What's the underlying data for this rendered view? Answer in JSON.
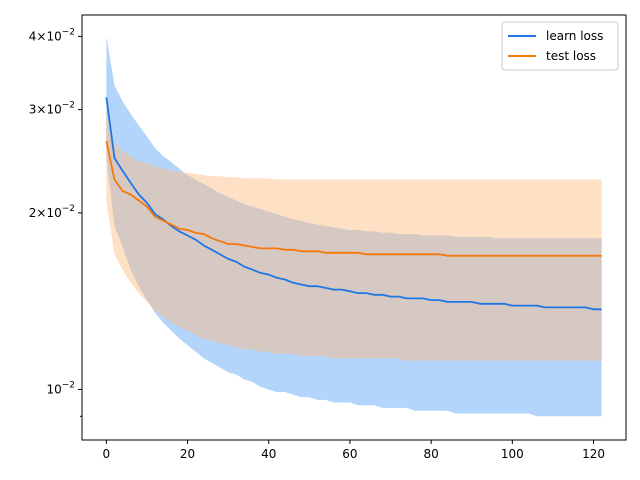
{
  "chart_data": {
    "type": "line",
    "title": "",
    "xlabel": "",
    "ylabel": "",
    "yscale": "log",
    "xlim": [
      -6,
      128
    ],
    "ylim": [
      0.0082,
      0.0435
    ],
    "grid": false,
    "legend_position": "top-right",
    "x_ticks": [
      {
        "value": 0,
        "label": "0"
      },
      {
        "value": 20,
        "label": "20"
      },
      {
        "value": 40,
        "label": "40"
      },
      {
        "value": 60,
        "label": "60"
      },
      {
        "value": 80,
        "label": "80"
      },
      {
        "value": 100,
        "label": "100"
      },
      {
        "value": 120,
        "label": "120"
      }
    ],
    "y_ticks": [
      {
        "value": 0.04,
        "base": "4×10",
        "exp": "−2"
      },
      {
        "value": 0.03,
        "base": "3×10",
        "exp": "−2"
      },
      {
        "value": 0.02,
        "base": "2×10",
        "exp": "−2"
      },
      {
        "value": 0.01,
        "base": "10",
        "exp": "−2"
      }
    ],
    "y_minor_ticks": [
      0.009
    ],
    "x": [
      0,
      2,
      4,
      6,
      8,
      10,
      12,
      14,
      16,
      18,
      20,
      22,
      24,
      26,
      28,
      30,
      32,
      34,
      36,
      38,
      40,
      42,
      44,
      46,
      48,
      50,
      52,
      54,
      56,
      58,
      60,
      62,
      64,
      66,
      68,
      70,
      72,
      74,
      76,
      78,
      80,
      82,
      84,
      86,
      88,
      90,
      92,
      94,
      96,
      98,
      100,
      102,
      104,
      106,
      108,
      110,
      112,
      114,
      116,
      118,
      120,
      122
    ],
    "series": [
      {
        "name": "learn loss",
        "color": "#1f77e4",
        "band_color": "#b3d4fb",
        "values": [
          0.0315,
          0.0248,
          0.0236,
          0.0225,
          0.0215,
          0.0208,
          0.0199,
          0.0195,
          0.019,
          0.0186,
          0.0183,
          0.018,
          0.0176,
          0.0173,
          0.017,
          0.0167,
          0.0165,
          0.0162,
          0.016,
          0.0158,
          0.0157,
          0.0155,
          0.0154,
          0.0152,
          0.0151,
          0.015,
          0.015,
          0.0149,
          0.0148,
          0.0148,
          0.0147,
          0.0146,
          0.0146,
          0.0145,
          0.0145,
          0.0144,
          0.0144,
          0.0143,
          0.0143,
          0.0143,
          0.0142,
          0.0142,
          0.0141,
          0.0141,
          0.0141,
          0.0141,
          0.014,
          0.014,
          0.014,
          0.014,
          0.0139,
          0.0139,
          0.0139,
          0.0139,
          0.0138,
          0.0138,
          0.0138,
          0.0138,
          0.0138,
          0.0138,
          0.0137,
          0.0137
        ],
        "band_upper": [
          0.04,
          0.033,
          0.031,
          0.0295,
          0.0282,
          0.027,
          0.0258,
          0.025,
          0.0244,
          0.0238,
          0.0232,
          0.0228,
          0.0224,
          0.022,
          0.0216,
          0.0213,
          0.021,
          0.0207,
          0.0205,
          0.0203,
          0.0201,
          0.0199,
          0.0197,
          0.0195,
          0.0194,
          0.0192,
          0.0191,
          0.019,
          0.0189,
          0.0188,
          0.0187,
          0.0187,
          0.0186,
          0.0186,
          0.0185,
          0.0185,
          0.0184,
          0.0184,
          0.0184,
          0.0183,
          0.0183,
          0.0183,
          0.0183,
          0.0182,
          0.0182,
          0.0182,
          0.0182,
          0.0182,
          0.0181,
          0.0181,
          0.0181,
          0.0181,
          0.0181,
          0.0181,
          0.0181,
          0.0181,
          0.0181,
          0.0181,
          0.0181,
          0.0181,
          0.0181,
          0.0181
        ],
        "band_lower": [
          0.025,
          0.019,
          0.0175,
          0.016,
          0.015,
          0.0142,
          0.0135,
          0.013,
          0.0126,
          0.0122,
          0.0119,
          0.0116,
          0.0113,
          0.0111,
          0.0109,
          0.0107,
          0.0106,
          0.0104,
          0.0103,
          0.0101,
          0.01,
          0.0099,
          0.0099,
          0.0098,
          0.0097,
          0.0097,
          0.0096,
          0.0096,
          0.0095,
          0.0095,
          0.0095,
          0.0094,
          0.0094,
          0.0094,
          0.0093,
          0.0093,
          0.0093,
          0.0093,
          0.0092,
          0.0092,
          0.0092,
          0.0092,
          0.0092,
          0.0091,
          0.0091,
          0.0091,
          0.0091,
          0.0091,
          0.0091,
          0.0091,
          0.0091,
          0.0091,
          0.0091,
          0.009,
          0.009,
          0.009,
          0.009,
          0.009,
          0.009,
          0.009,
          0.009,
          0.009
        ]
      },
      {
        "name": "test loss",
        "color": "#f5780a",
        "band_color": "#fdd5b0",
        "values": [
          0.0265,
          0.0228,
          0.0218,
          0.0215,
          0.021,
          0.0205,
          0.0197,
          0.0194,
          0.0191,
          0.0188,
          0.0187,
          0.0185,
          0.0184,
          0.0181,
          0.0179,
          0.0177,
          0.0177,
          0.0176,
          0.0175,
          0.0174,
          0.0174,
          0.0174,
          0.0173,
          0.0173,
          0.0172,
          0.0172,
          0.0172,
          0.0171,
          0.0171,
          0.0171,
          0.0171,
          0.0171,
          0.017,
          0.017,
          0.017,
          0.017,
          0.017,
          0.017,
          0.017,
          0.017,
          0.017,
          0.017,
          0.0169,
          0.0169,
          0.0169,
          0.0169,
          0.0169,
          0.0169,
          0.0169,
          0.0169,
          0.0169,
          0.0169,
          0.0169,
          0.0169,
          0.0169,
          0.0169,
          0.0169,
          0.0169,
          0.0169,
          0.0169,
          0.0169,
          0.0169
        ],
        "band_upper": [
          0.03,
          0.0265,
          0.0255,
          0.025,
          0.0245,
          0.0243,
          0.024,
          0.0238,
          0.0236,
          0.0235,
          0.0234,
          0.0233,
          0.0232,
          0.0231,
          0.0231,
          0.023,
          0.023,
          0.0229,
          0.0229,
          0.0229,
          0.0229,
          0.0228,
          0.0228,
          0.0228,
          0.0228,
          0.0228,
          0.0228,
          0.0228,
          0.0228,
          0.0228,
          0.0228,
          0.0228,
          0.0228,
          0.0228,
          0.0228,
          0.0228,
          0.0228,
          0.0228,
          0.0228,
          0.0228,
          0.0228,
          0.0228,
          0.0228,
          0.0228,
          0.0228,
          0.0228,
          0.0228,
          0.0228,
          0.0228,
          0.0228,
          0.0228,
          0.0228,
          0.0228,
          0.0228,
          0.0228,
          0.0228,
          0.0228,
          0.0228,
          0.0228,
          0.0228,
          0.0228,
          0.0228
        ],
        "band_lower": [
          0.021,
          0.017,
          0.016,
          0.0152,
          0.0146,
          0.0141,
          0.0136,
          0.0133,
          0.013,
          0.0128,
          0.0126,
          0.0124,
          0.0122,
          0.0121,
          0.012,
          0.0119,
          0.0118,
          0.0117,
          0.0117,
          0.0116,
          0.0116,
          0.0115,
          0.0115,
          0.0115,
          0.0114,
          0.0114,
          0.0114,
          0.0114,
          0.0113,
          0.0113,
          0.0113,
          0.0113,
          0.0113,
          0.0113,
          0.0113,
          0.0113,
          0.0113,
          0.0112,
          0.0112,
          0.0112,
          0.0112,
          0.0112,
          0.0112,
          0.0112,
          0.0112,
          0.0112,
          0.0112,
          0.0112,
          0.0112,
          0.0112,
          0.0112,
          0.0112,
          0.0112,
          0.0112,
          0.0112,
          0.0112,
          0.0112,
          0.0112,
          0.0112,
          0.0112,
          0.0112,
          0.0112
        ]
      }
    ],
    "overlap_color": "#d6c8c2"
  }
}
